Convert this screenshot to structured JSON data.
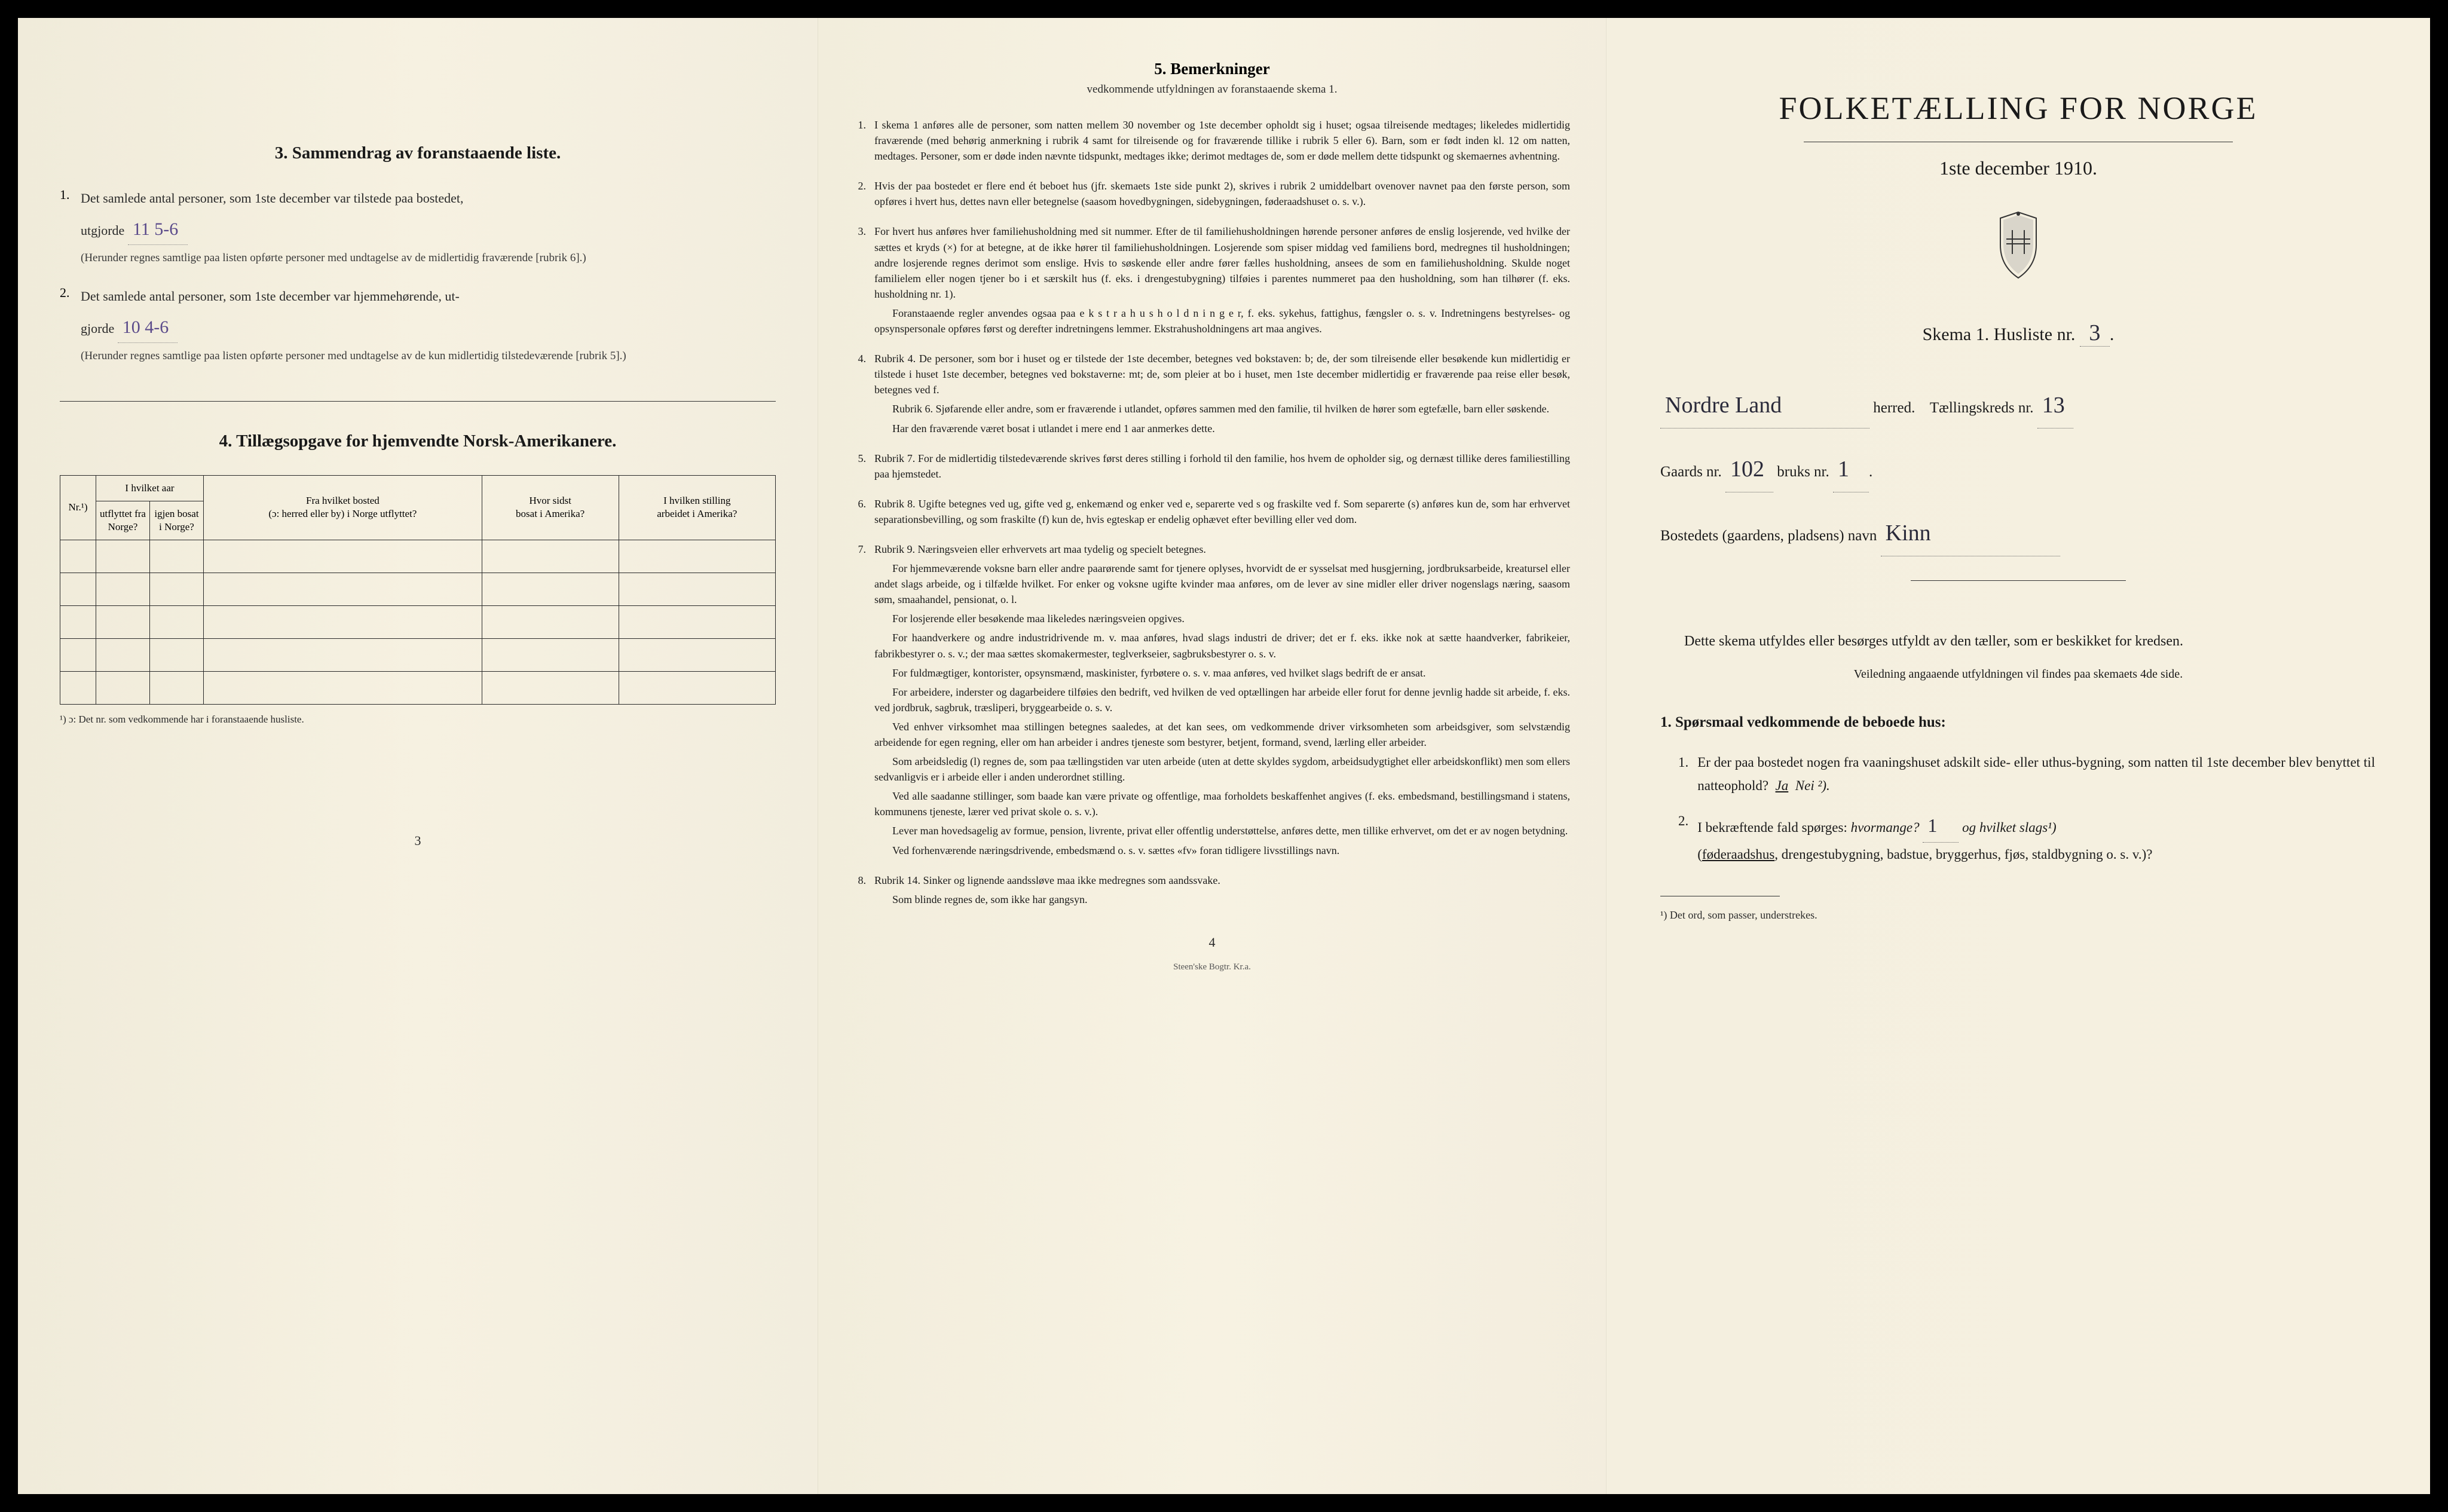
{
  "left_panel": {
    "section3": {
      "heading": "3.   Sammendrag av foranstaaende liste.",
      "item1": {
        "num": "1.",
        "text_before": "Det samlede antal personer, som 1ste december var tilstede paa bostedet,",
        "text_utgjorde": "utgjorde",
        "handwritten": "11  5-6",
        "paren": "(Herunder regnes samtlige paa listen opførte personer med undtagelse av de midlertidig fraværende [rubrik 6].)"
      },
      "item2": {
        "num": "2.",
        "text_before": "Det samlede antal personer, som 1ste december var hjemmehørende, ut-",
        "text_gjorde": "gjorde",
        "handwritten": "10    4-6",
        "paren": "(Herunder regnes samtlige paa listen opførte personer med undtagelse av de kun midlertidig tilstedeværende [rubrik 5].)"
      }
    },
    "section4": {
      "heading": "4.   Tillægsopgave for hjemvendte Norsk-Amerikanere.",
      "table": {
        "headers": {
          "col1": "Nr.¹)",
          "col2_top": "I hvilket aar",
          "col2a": "utflyttet fra Norge?",
          "col2b": "igjen bosat i Norge?",
          "col3_top": "Fra hvilket bosted",
          "col3": "(ɔ: herred eller by) i Norge utflyttet?",
          "col4_top": "Hvor sidst",
          "col4": "bosat i Amerika?",
          "col5_top": "I hvilken stilling",
          "col5": "arbeidet i Amerika?"
        },
        "empty_rows": 5
      },
      "footnote": "¹) ɔ: Det nr. som vedkommende har i foranstaaende husliste."
    },
    "page_num": "3"
  },
  "center_panel": {
    "heading": "5.   Bemerkninger",
    "subheading": "vedkommende utfyldningen av foranstaaende skema 1.",
    "items": [
      {
        "num": "1.",
        "paragraphs": [
          "I skema 1 anføres alle de personer, som natten mellem 30 november og 1ste december opholdt sig i huset; ogsaa tilreisende medtages; likeledes midlertidig fraværende (med behørig anmerkning i rubrik 4 samt for tilreisende og for fraværende tillike i rubrik 5 eller 6). Barn, som er født inden kl. 12 om natten, medtages. Personer, som er døde inden nævnte tidspunkt, medtages ikke; derimot medtages de, som er døde mellem dette tidspunkt og skemaernes avhentning."
        ]
      },
      {
        "num": "2.",
        "paragraphs": [
          "Hvis der paa bostedet er flere end ét beboet hus (jfr. skemaets 1ste side punkt 2), skrives i rubrik 2 umiddelbart ovenover navnet paa den første person, som opføres i hvert hus, dettes navn eller betegnelse (saasom hovedbygningen, sidebygningen, føderaadshuset o. s. v.)."
        ]
      },
      {
        "num": "3.",
        "paragraphs": [
          "For hvert hus anføres hver familiehusholdning med sit nummer. Efter de til familiehusholdningen hørende personer anføres de enslig losjerende, ved hvilke der sættes et kryds (×) for at betegne, at de ikke hører til familiehusholdningen. Losjerende som spiser middag ved familiens bord, medregnes til husholdningen; andre losjerende regnes derimot som enslige. Hvis to søskende eller andre fører fælles husholdning, ansees de som en familiehusholdning. Skulde noget familielem eller nogen tjener bo i et særskilt hus (f. eks. i drengestubygning) tilføies i parentes nummeret paa den husholdning, som han tilhører (f. eks. husholdning nr. 1).",
          "Foranstaaende regler anvendes ogsaa paa e k s t r a h u s h o l d n i n g e r, f. eks. sykehus, fattighus, fængsler o. s. v. Indretningens bestyrelses- og opsynspersonale opføres først og derefter indretningens lemmer. Ekstrahusholdningens art maa angives."
        ]
      },
      {
        "num": "4.",
        "paragraphs": [
          "Rubrik 4. De personer, som bor i huset og er tilstede der 1ste december, betegnes ved bokstaven: b; de, der som tilreisende eller besøkende kun midlertidig er tilstede i huset 1ste december, betegnes ved bokstaverne: mt; de, som pleier at bo i huset, men 1ste december midlertidig er fraværende paa reise eller besøk, betegnes ved f.",
          "Rubrik 6. Sjøfarende eller andre, som er fraværende i utlandet, opføres sammen med den familie, til hvilken de hører som egtefælle, barn eller søskende.",
          "Har den fraværende været bosat i utlandet i mere end 1 aar anmerkes dette."
        ]
      },
      {
        "num": "5.",
        "paragraphs": [
          "Rubrik 7. For de midlertidig tilstedeværende skrives først deres stilling i forhold til den familie, hos hvem de opholder sig, og dernæst tillike deres familiestilling paa hjemstedet."
        ]
      },
      {
        "num": "6.",
        "paragraphs": [
          "Rubrik 8. Ugifte betegnes ved ug, gifte ved g, enkemænd og enker ved e, separerte ved s og fraskilte ved f. Som separerte (s) anføres kun de, som har erhvervet separationsbevilling, og som fraskilte (f) kun de, hvis egteskap er endelig ophævet efter bevilling eller ved dom."
        ]
      },
      {
        "num": "7.",
        "paragraphs": [
          "Rubrik 9. Næringsveien eller erhvervets art maa tydelig og specielt betegnes.",
          "For hjemmeværende voksne barn eller andre paarørende samt for tjenere oplyses, hvorvidt de er sysselsat med husgjerning, jordbruksarbeide, kreatursel eller andet slags arbeide, og i tilfælde hvilket. For enker og voksne ugifte kvinder maa anføres, om de lever av sine midler eller driver nogenslags næring, saasom søm, smaahandel, pensionat, o. l.",
          "For losjerende eller besøkende maa likeledes næringsveien opgives.",
          "For haandverkere og andre industridrivende m. v. maa anføres, hvad slags industri de driver; det er f. eks. ikke nok at sætte haandverker, fabrikeier, fabrikbestyrer o. s. v.; der maa sættes skomakermester, teglverkseier, sagbruksbestyrer o. s. v.",
          "For fuldmægtiger, kontorister, opsynsmænd, maskinister, fyrbøtere o. s. v. maa anføres, ved hvilket slags bedrift de er ansat.",
          "For arbeidere, inderster og dagarbeidere tilføies den bedrift, ved hvilken de ved optællingen har arbeide eller forut for denne jevnlig hadde sit arbeide, f. eks. ved jordbruk, sagbruk, træsliperi, bryggearbeide o. s. v.",
          "Ved enhver virksomhet maa stillingen betegnes saaledes, at det kan sees, om vedkommende driver virksomheten som arbeidsgiver, som selvstændig arbeidende for egen regning, eller om han arbeider i andres tjeneste som bestyrer, betjent, formand, svend, lærling eller arbeider.",
          "Som arbeidsledig (l) regnes de, som paa tællingstiden var uten arbeide (uten at dette skyldes sygdom, arbeidsudygtighet eller arbeidskonflikt) men som ellers sedvanligvis er i arbeide eller i anden underordnet stilling.",
          "Ved alle saadanne stillinger, som baade kan være private og offentlige, maa forholdets beskaffenhet angives (f. eks. embedsmand, bestillingsmand i statens, kommunens tjeneste, lærer ved privat skole o. s. v.).",
          "Lever man hovedsagelig av formue, pension, livrente, privat eller offentlig understøttelse, anføres dette, men tillike erhvervet, om det er av nogen betydning.",
          "Ved forhenværende næringsdrivende, embedsmænd o. s. v. sættes «fv» foran tidligere livsstillings navn."
        ]
      },
      {
        "num": "8.",
        "paragraphs": [
          "Rubrik 14. Sinker og lignende aandssløve maa ikke medregnes som aandssvake.",
          "Som blinde regnes de, som ikke har gangsyn."
        ]
      }
    ],
    "page_num": "4",
    "printer": "Steen'ske Bogtr.    Kr.a."
  },
  "right_panel": {
    "title": "FOLKETÆLLING FOR NORGE",
    "subtitle": "1ste december 1910.",
    "skema_label": "Skema 1.   Husliste nr.",
    "husliste_nr": "3",
    "herred_value": "Nordre Land",
    "herred_label": "herred.",
    "tkreds_label": "Tællingskreds nr.",
    "tkreds_value": "13",
    "gaards_label": "Gaards nr.",
    "gaards_value": "102",
    "bruks_label": "bruks nr.",
    "bruks_value": "1",
    "bosted_label": "Bostedets (gaardens, pladsens) navn",
    "bosted_value": "Kinn",
    "instructions_text": "Dette skema utfyldes eller besørges utfyldt av den tæller, som er beskikket for kredsen.",
    "instructions_sub": "Veiledning angaaende utfyldningen vil findes paa skemaets 4de side.",
    "sp_heading": "1. Spørsmaal vedkommende de beboede hus:",
    "q1": {
      "num": "1.",
      "text": "Er der paa bostedet nogen fra vaaningshuset adskilt side- eller uthus-bygning, som natten til 1ste december blev benyttet til natteophold?",
      "ja": "Ja",
      "nei": "Nei ²)."
    },
    "q2": {
      "num": "2.",
      "text_before": "I bekræftende fald spørges:",
      "hvormange": "hvormange?",
      "hvormange_value": "1",
      "og_label": "og hvilket slags¹)",
      "paren": "(føderaadshus, drengestubygning, badstue, bryggerhus, fjøs, staldbygning o. s. v.)?"
    },
    "footnote": "¹) Det ord, som passer, understrekes."
  }
}
